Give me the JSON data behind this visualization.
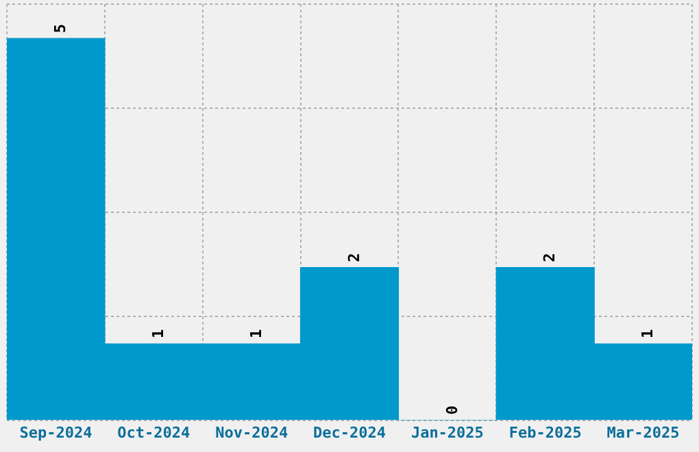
{
  "chart_data": {
    "type": "bar",
    "categories": [
      "Sep-2024",
      "Oct-2024",
      "Nov-2024",
      "Dec-2024",
      "Jan-2025",
      "Feb-2025",
      "Mar-2025"
    ],
    "values": [
      5,
      1,
      1,
      2,
      0,
      2,
      1
    ],
    "color": "#0099cc",
    "ylim": [
      0,
      5.45
    ],
    "yticks": [
      {
        "value": 0,
        "label": null
      },
      {
        "value": 1.3625,
        "label": null
      },
      {
        "value": 2.725,
        "label": null
      },
      {
        "value": 4.0875,
        "label": null
      },
      {
        "value": 5.45,
        "label": null
      }
    ],
    "tick_labels": "x",
    "grid": true,
    "legend": false,
    "data_labels": true
  }
}
